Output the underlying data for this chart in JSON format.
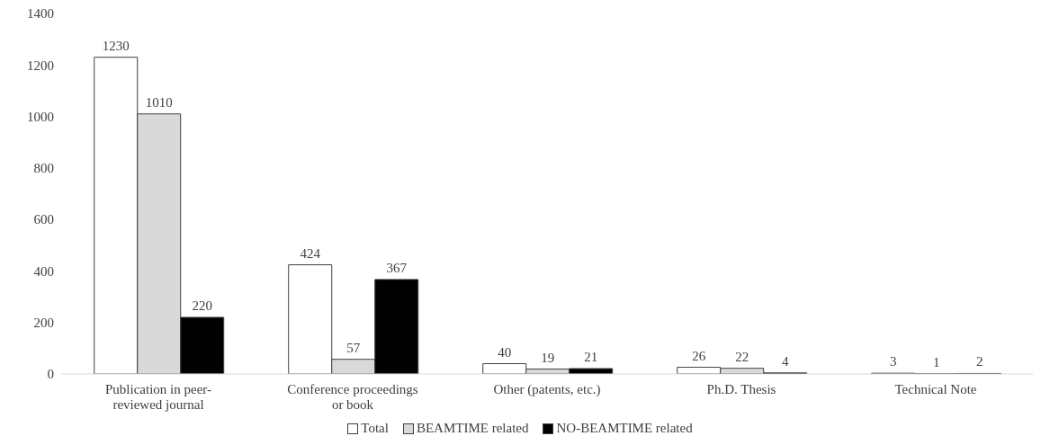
{
  "chart_data": {
    "type": "bar",
    "categories": [
      "Publication in peer-reviewed journal",
      "Conference proceedings or book",
      "Other (patents, etc.)",
      "Ph.D. Thesis",
      "Technical Note"
    ],
    "series": [
      {
        "name": "Total",
        "color": "#ffffff",
        "values": [
          1230,
          424,
          40,
          26,
          3
        ]
      },
      {
        "name": "BEAMTIME related",
        "color": "#d9d9d9",
        "values": [
          1010,
          57,
          19,
          22,
          1
        ]
      },
      {
        "name": "NO-BEAMTIME related",
        "color": "#000000",
        "values": [
          220,
          367,
          21,
          4,
          2
        ]
      }
    ],
    "ylim": [
      0,
      1400
    ],
    "yticks": [
      0,
      200,
      400,
      600,
      800,
      1000,
      1200,
      1400
    ],
    "grid": false,
    "legend": "bottom",
    "data_labels": true
  }
}
